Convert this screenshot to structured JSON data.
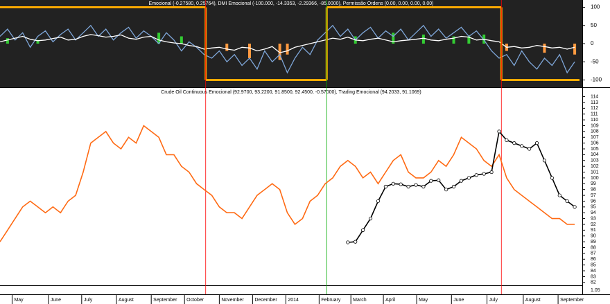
{
  "chart_data": [
    {
      "type": "indicator",
      "title": "Emocional (-0.27580, 0.25764), DMI Emocional (-100.000, -14.3353, -2.29366, -85.0000), Permissão Ordens (0.00, 0.00, 0.00, 0.00)",
      "xlim": [
        0,
        77
      ],
      "ylim": [
        -120,
        120
      ],
      "yticks": [
        100,
        50,
        0,
        -50,
        -100
      ],
      "x": [
        0,
        1,
        2,
        3,
        4,
        5,
        6,
        7,
        8,
        9,
        10,
        11,
        12,
        13,
        14,
        15,
        16,
        17,
        18,
        19,
        20,
        21,
        22,
        23,
        24,
        25,
        26,
        27,
        28,
        29,
        30,
        31,
        32,
        33,
        34,
        35,
        36,
        37,
        38,
        39,
        40,
        41,
        42,
        43,
        44,
        45,
        46,
        47,
        48,
        49,
        50,
        51,
        52,
        53,
        54,
        55,
        56,
        57,
        58,
        59,
        60,
        61,
        62,
        63,
        64,
        65,
        66,
        67,
        68,
        69,
        70,
        71,
        72,
        73,
        74,
        75,
        76
      ],
      "series": [
        {
          "color": "#7ea6d8",
          "values": [
            20,
            40,
            10,
            30,
            -10,
            20,
            35,
            5,
            25,
            40,
            10,
            30,
            50,
            20,
            40,
            10,
            30,
            45,
            15,
            35,
            20,
            0,
            30,
            10,
            -20,
            5,
            -10,
            -30,
            -40,
            -20,
            -50,
            -30,
            -60,
            -40,
            -70,
            -20,
            -50,
            -30,
            -80,
            -40,
            -10,
            -30,
            10,
            30,
            50,
            20,
            40,
            10,
            30,
            45,
            15,
            35,
            20,
            40,
            10,
            30,
            50,
            20,
            40,
            15,
            30,
            45,
            20,
            35,
            10,
            -20,
            -40,
            -30,
            -60,
            -20,
            -50,
            -70,
            -40,
            -60,
            -30,
            -80,
            -50
          ]
        },
        {
          "color": "#ffffff",
          "values": [
            5,
            10,
            15,
            20,
            12,
            8,
            10,
            14,
            18,
            10,
            12,
            20,
            25,
            22,
            18,
            20,
            24,
            15,
            12,
            18,
            20,
            10,
            5,
            2,
            0,
            -5,
            -8,
            -15,
            -12,
            -10,
            -15,
            -18,
            -10,
            -12,
            -20,
            -15,
            -8,
            -25,
            -20,
            -10,
            -5,
            0,
            5,
            10,
            15,
            12,
            18,
            10,
            8,
            12,
            15,
            10,
            5,
            8,
            10,
            12,
            15,
            10,
            8,
            12,
            15,
            20,
            18,
            10,
            12,
            8,
            5,
            -10,
            -8,
            -12,
            -10,
            -5,
            -8,
            -12,
            -10,
            -15,
            -10
          ]
        }
      ],
      "bars": {
        "x": [
          1,
          5,
          21,
          24,
          30,
          33,
          37,
          38,
          47,
          52,
          56,
          60,
          62,
          64,
          67,
          72,
          76
        ],
        "values": [
          15,
          10,
          30,
          20,
          -20,
          -40,
          -45,
          -30,
          20,
          30,
          25,
          20,
          20,
          25,
          -20,
          -25,
          -30
        ],
        "pos_color": "#33cc33",
        "neg_color": "#ff9a40"
      },
      "step": {
        "x": [
          0,
          27.2,
          43.2,
          66.3
        ],
        "values": [
          100,
          -100,
          100,
          -100
        ],
        "color": "#ffaa00"
      }
    },
    {
      "type": "line",
      "title": "Crude Oil Continuous Emocional (92.9700, 93.2200, 91.8500, 92.4500, -0.57000), Trading Emocional (94.2033, 91.1069)",
      "xlim": [
        0,
        77
      ],
      "ylim": [
        81.5,
        115.5
      ],
      "yticks": [
        82,
        83,
        84,
        85,
        86,
        87,
        88,
        89,
        90,
        91,
        92,
        93,
        94,
        95,
        96,
        97,
        98,
        99,
        100,
        101,
        102,
        103,
        104,
        105,
        106,
        107,
        108,
        109,
        110,
        111,
        112,
        113,
        114
      ],
      "xticks": [
        {
          "value": 1.6,
          "label": "May"
        },
        {
          "value": 6.4,
          "label": "June"
        },
        {
          "value": 10.8,
          "label": "July"
        },
        {
          "value": 15.4,
          "label": "August"
        },
        {
          "value": 20,
          "label": "September"
        },
        {
          "value": 24.4,
          "label": "October"
        },
        {
          "value": 29,
          "label": "November"
        },
        {
          "value": 33.4,
          "label": "December"
        },
        {
          "value": 37.8,
          "label": "2014"
        },
        {
          "value": 42.2,
          "label": "February"
        },
        {
          "value": 46.4,
          "label": "March"
        },
        {
          "value": 50.7,
          "label": "April"
        },
        {
          "value": 55.1,
          "label": "May"
        },
        {
          "value": 59.7,
          "label": "June"
        },
        {
          "value": 64.4,
          "label": "July"
        },
        {
          "value": 69.2,
          "label": "August"
        },
        {
          "value": 73.8,
          "label": "September"
        }
      ],
      "x": [
        0,
        1,
        2,
        3,
        4,
        5,
        6,
        7,
        8,
        9,
        10,
        11,
        12,
        13,
        14,
        15,
        16,
        17,
        18,
        19,
        20,
        21,
        22,
        23,
        24,
        25,
        26,
        27,
        28,
        29,
        30,
        31,
        32,
        33,
        34,
        35,
        36,
        37,
        38,
        39,
        40,
        41,
        42,
        43,
        44,
        45,
        46,
        47,
        48,
        49,
        50,
        51,
        52,
        53,
        54,
        55,
        56,
        57,
        58,
        59,
        60,
        61,
        62,
        63,
        64,
        65,
        66,
        67,
        68,
        69,
        70,
        71,
        72,
        73,
        74,
        75,
        76
      ],
      "series": [
        {
          "color": "#ff6a13",
          "markers": false,
          "values": [
            89,
            91,
            93,
            95,
            96,
            95,
            94,
            95,
            94,
            96,
            97,
            101,
            106,
            107,
            108,
            106,
            105,
            107,
            106,
            109,
            108,
            107,
            104,
            104,
            102,
            101,
            99,
            98,
            97,
            95,
            94,
            94,
            93,
            95,
            97,
            98,
            99,
            98,
            94,
            92,
            93,
            96,
            97,
            99,
            100,
            102,
            103,
            102,
            100,
            101,
            99,
            101,
            103,
            104,
            101,
            100,
            100,
            101,
            103,
            102,
            104,
            107,
            106,
            105,
            103,
            102,
            104,
            100,
            98,
            97,
            96,
            95,
            94,
            93,
            93,
            92,
            92
          ]
        },
        {
          "color": "#000000",
          "markers": true,
          "values": [
            null,
            null,
            null,
            null,
            null,
            null,
            null,
            null,
            null,
            null,
            null,
            null,
            null,
            null,
            null,
            null,
            null,
            null,
            null,
            null,
            null,
            null,
            null,
            null,
            null,
            null,
            null,
            null,
            null,
            null,
            null,
            null,
            null,
            null,
            null,
            null,
            null,
            null,
            null,
            null,
            null,
            null,
            null,
            null,
            null,
            null,
            88.9,
            89,
            91,
            93,
            96,
            98.5,
            99,
            98.9,
            98.5,
            98.8,
            98.5,
            99.5,
            99.6,
            98,
            98.5,
            99.5,
            100,
            100.5,
            100.7,
            101,
            108,
            106.5,
            106,
            105.5,
            105,
            106,
            103,
            100,
            97,
            96,
            95
          ]
        }
      ],
      "vlines": [
        {
          "x": 27.2,
          "color": "#ff0000"
        },
        {
          "x": 43.2,
          "color": "#00aa00"
        },
        {
          "x": 66.3,
          "color": "#ff0000"
        }
      ]
    },
    {
      "type": "axis-strip",
      "yticks": [
        {
          "value": 1.05,
          "label": "1.05"
        }
      ]
    }
  ]
}
